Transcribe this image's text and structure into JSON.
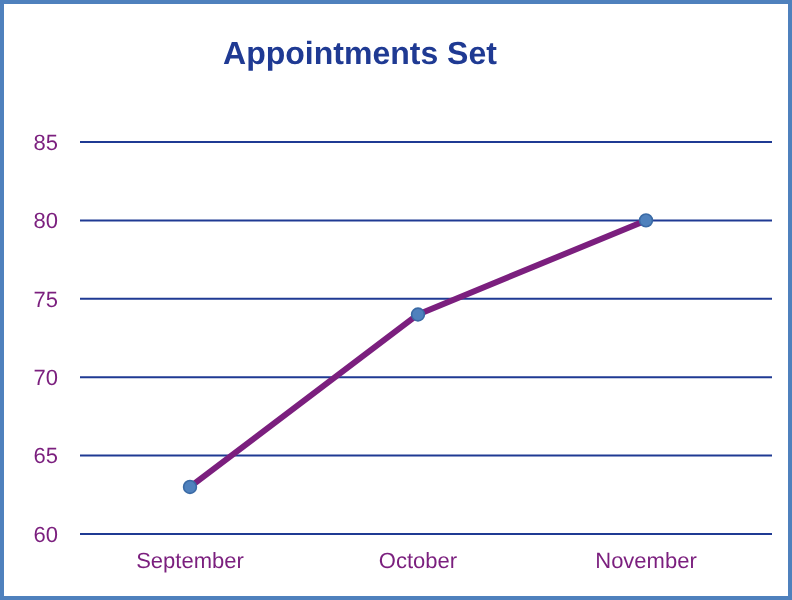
{
  "chart_data": {
    "type": "line",
    "title": "Appointments Set",
    "categories": [
      "September",
      "October",
      "November"
    ],
    "series": [
      {
        "color": "#7b1f7e",
        "values": [
          63,
          74,
          80
        ]
      }
    ],
    "ylim": [
      60,
      85
    ],
    "yticks": [
      60,
      65,
      70,
      75,
      80,
      85
    ],
    "grid": "y",
    "marker": "circle",
    "line_style": "solid"
  }
}
